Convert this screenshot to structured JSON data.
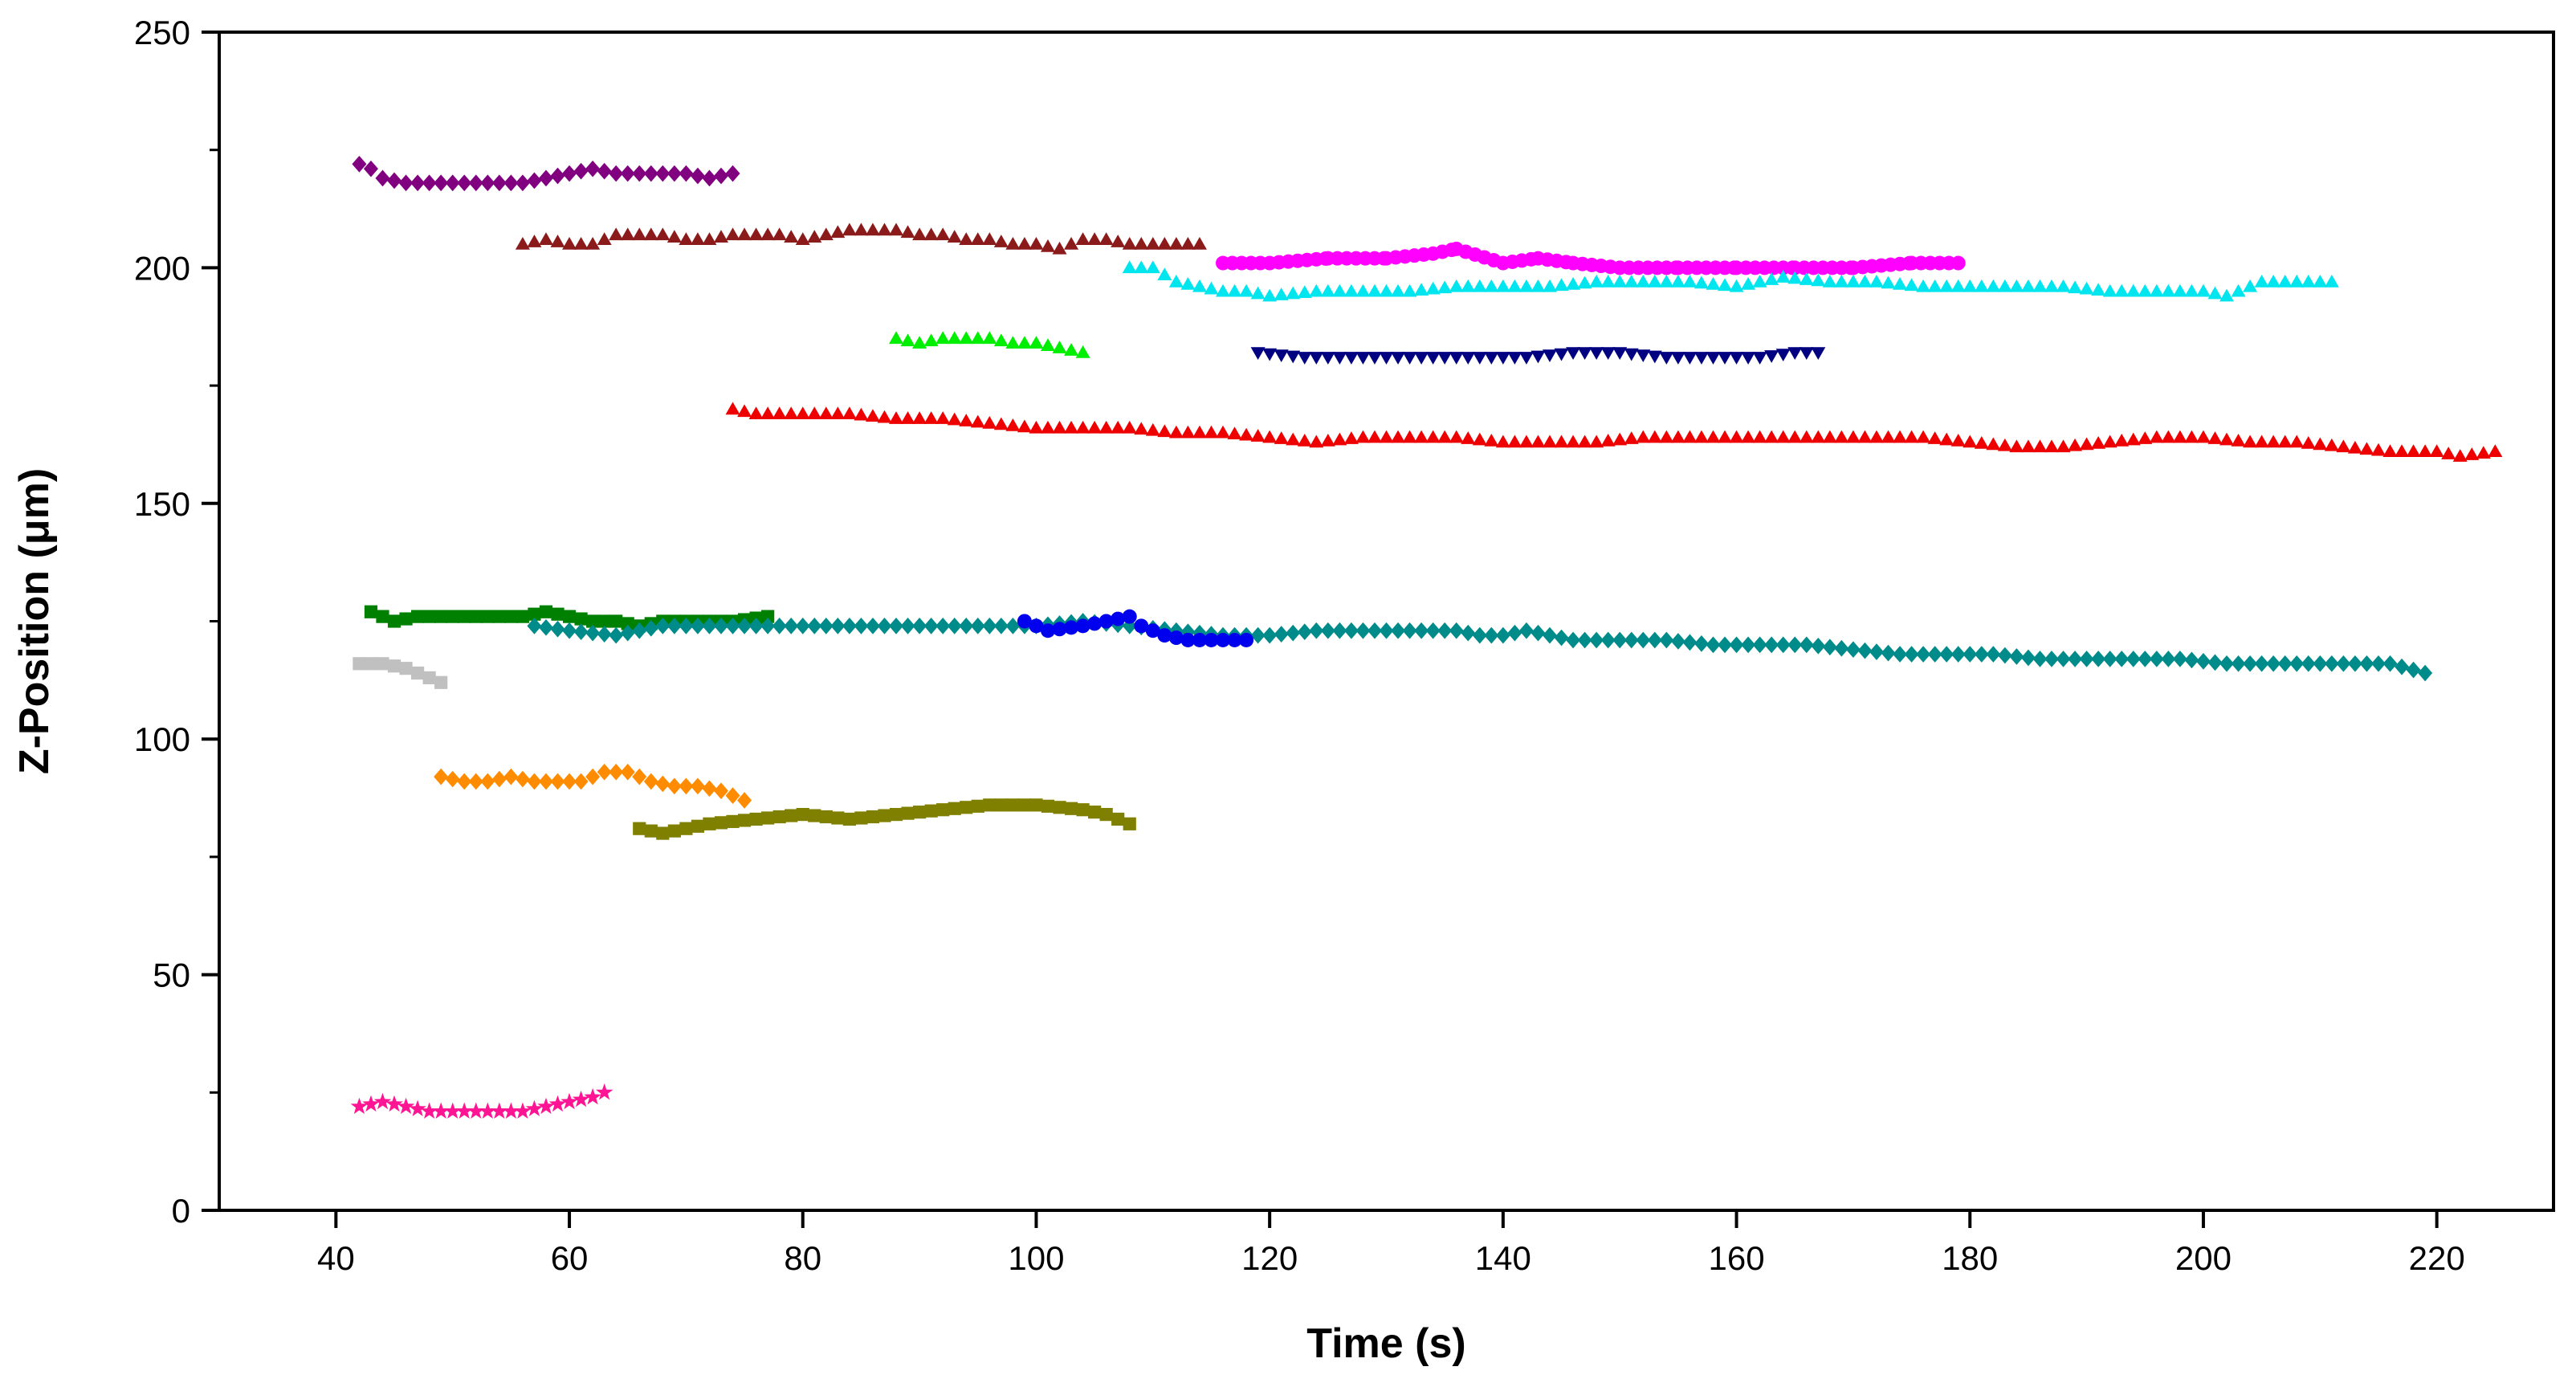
{
  "chart_data": {
    "type": "scatter",
    "title": "",
    "xlabel": "Time (s)",
    "ylabel": "Z-Position (μm)",
    "xlim": [
      30,
      230
    ],
    "ylim": [
      0,
      250
    ],
    "xticks": [
      40,
      60,
      80,
      100,
      120,
      140,
      160,
      180,
      200,
      220
    ],
    "yticks": [
      0,
      50,
      100,
      150,
      200,
      250
    ],
    "grid": false,
    "legend": "none",
    "series": [
      {
        "name": "purple",
        "color": "#800080",
        "marker": "diamond",
        "step": 1,
        "keys": [
          [
            42,
            222
          ],
          [
            43,
            221
          ],
          [
            44,
            219
          ],
          [
            46,
            218
          ],
          [
            48,
            218
          ],
          [
            50,
            218
          ],
          [
            52,
            218
          ],
          [
            54,
            218
          ],
          [
            56,
            218
          ],
          [
            58,
            219
          ],
          [
            60,
            220
          ],
          [
            62,
            221
          ],
          [
            64,
            220
          ],
          [
            66,
            220
          ],
          [
            68,
            220
          ],
          [
            70,
            220
          ],
          [
            72,
            219
          ],
          [
            74,
            220
          ]
        ]
      },
      {
        "name": "dark-red",
        "color": "#8B1A1A",
        "marker": "triangle-up",
        "step": 1,
        "keys": [
          [
            56,
            205
          ],
          [
            58,
            206
          ],
          [
            60,
            205
          ],
          [
            62,
            205
          ],
          [
            64,
            207
          ],
          [
            66,
            207
          ],
          [
            68,
            207
          ],
          [
            70,
            206
          ],
          [
            72,
            206
          ],
          [
            74,
            207
          ],
          [
            76,
            207
          ],
          [
            78,
            207
          ],
          [
            80,
            206
          ],
          [
            82,
            207
          ],
          [
            84,
            208
          ],
          [
            86,
            208
          ],
          [
            88,
            208
          ],
          [
            90,
            207
          ],
          [
            92,
            207
          ],
          [
            94,
            206
          ],
          [
            96,
            206
          ],
          [
            98,
            205
          ],
          [
            100,
            205
          ],
          [
            102,
            204
          ],
          [
            104,
            206
          ],
          [
            106,
            206
          ],
          [
            108,
            205
          ],
          [
            110,
            205
          ],
          [
            112,
            205
          ],
          [
            114,
            205
          ]
        ]
      },
      {
        "name": "magenta",
        "color": "#FF00FF",
        "marker": "circle",
        "step": 0.8,
        "keys": [
          [
            116,
            201
          ],
          [
            120,
            201
          ],
          [
            125,
            202
          ],
          [
            130,
            202
          ],
          [
            134,
            203
          ],
          [
            136,
            204
          ],
          [
            140,
            201
          ],
          [
            143,
            202
          ],
          [
            146,
            201
          ],
          [
            150,
            200
          ],
          [
            155,
            200
          ],
          [
            160,
            200
          ],
          [
            165,
            200
          ],
          [
            170,
            200
          ],
          [
            175,
            201
          ],
          [
            179,
            201
          ]
        ]
      },
      {
        "name": "cyan",
        "color": "#00E5EE",
        "marker": "triangle-up",
        "step": 1,
        "keys": [
          [
            108,
            200
          ],
          [
            110,
            200
          ],
          [
            112,
            197
          ],
          [
            114,
            196
          ],
          [
            116,
            195
          ],
          [
            118,
            195
          ],
          [
            120,
            194
          ],
          [
            124,
            195
          ],
          [
            128,
            195
          ],
          [
            132,
            195
          ],
          [
            136,
            196
          ],
          [
            140,
            196
          ],
          [
            144,
            196
          ],
          [
            148,
            197
          ],
          [
            152,
            197
          ],
          [
            156,
            197
          ],
          [
            160,
            196
          ],
          [
            164,
            198
          ],
          [
            168,
            197
          ],
          [
            172,
            197
          ],
          [
            176,
            196
          ],
          [
            180,
            196
          ],
          [
            184,
            196
          ],
          [
            188,
            196
          ],
          [
            192,
            195
          ],
          [
            196,
            195
          ],
          [
            200,
            195
          ],
          [
            202,
            194
          ],
          [
            205,
            197
          ],
          [
            208,
            197
          ],
          [
            211,
            197
          ]
        ]
      },
      {
        "name": "green",
        "color": "#00EE00",
        "marker": "triangle-up",
        "step": 1,
        "keys": [
          [
            88,
            185
          ],
          [
            90,
            184
          ],
          [
            92,
            185
          ],
          [
            94,
            185
          ],
          [
            96,
            185
          ],
          [
            98,
            184
          ],
          [
            100,
            184
          ],
          [
            102,
            183
          ],
          [
            104,
            182
          ]
        ]
      },
      {
        "name": "navy",
        "color": "#000080",
        "marker": "triangle-down",
        "step": 1,
        "keys": [
          [
            119,
            182
          ],
          [
            123,
            181
          ],
          [
            126,
            181
          ],
          [
            130,
            181
          ],
          [
            134,
            181
          ],
          [
            138,
            181
          ],
          [
            142,
            181
          ],
          [
            146,
            182
          ],
          [
            150,
            182
          ],
          [
            154,
            181
          ],
          [
            158,
            181
          ],
          [
            162,
            181
          ],
          [
            165,
            182
          ],
          [
            167,
            182
          ]
        ]
      },
      {
        "name": "red",
        "color": "#EE0000",
        "marker": "triangle-up",
        "step": 1,
        "keys": [
          [
            74,
            170
          ],
          [
            76,
            169
          ],
          [
            80,
            169
          ],
          [
            84,
            169
          ],
          [
            88,
            168
          ],
          [
            92,
            168
          ],
          [
            96,
            167
          ],
          [
            100,
            166
          ],
          [
            104,
            166
          ],
          [
            108,
            166
          ],
          [
            112,
            165
          ],
          [
            116,
            165
          ],
          [
            120,
            164
          ],
          [
            124,
            163
          ],
          [
            128,
            164
          ],
          [
            132,
            164
          ],
          [
            136,
            164
          ],
          [
            140,
            163
          ],
          [
            144,
            163
          ],
          [
            148,
            163
          ],
          [
            152,
            164
          ],
          [
            156,
            164
          ],
          [
            160,
            164
          ],
          [
            164,
            164
          ],
          [
            168,
            164
          ],
          [
            172,
            164
          ],
          [
            176,
            164
          ],
          [
            180,
            163
          ],
          [
            184,
            162
          ],
          [
            188,
            162
          ],
          [
            192,
            163
          ],
          [
            196,
            164
          ],
          [
            200,
            164
          ],
          [
            204,
            163
          ],
          [
            208,
            163
          ],
          [
            212,
            162
          ],
          [
            216,
            161
          ],
          [
            220,
            161
          ],
          [
            222,
            160
          ],
          [
            225,
            161
          ]
        ]
      },
      {
        "name": "dark-green",
        "color": "#008000",
        "marker": "square",
        "step": 1,
        "keys": [
          [
            43,
            127
          ],
          [
            45,
            125
          ],
          [
            47,
            126
          ],
          [
            50,
            126
          ],
          [
            53,
            126
          ],
          [
            56,
            126
          ],
          [
            58,
            127
          ],
          [
            60,
            126
          ],
          [
            62,
            125
          ],
          [
            64,
            125
          ],
          [
            66,
            124
          ],
          [
            68,
            125
          ],
          [
            70,
            125
          ],
          [
            72,
            125
          ],
          [
            74,
            125
          ],
          [
            77,
            126
          ]
        ]
      },
      {
        "name": "teal",
        "color": "#008B8B",
        "marker": "diamond",
        "step": 1,
        "keys": [
          [
            57,
            124
          ],
          [
            60,
            123
          ],
          [
            64,
            122
          ],
          [
            68,
            124
          ],
          [
            72,
            124
          ],
          [
            76,
            124
          ],
          [
            80,
            124
          ],
          [
            84,
            124
          ],
          [
            88,
            124
          ],
          [
            92,
            124
          ],
          [
            96,
            124
          ],
          [
            100,
            124
          ],
          [
            104,
            125
          ],
          [
            108,
            124
          ],
          [
            112,
            123
          ],
          [
            116,
            122
          ],
          [
            120,
            122
          ],
          [
            124,
            123
          ],
          [
            128,
            123
          ],
          [
            132,
            123
          ],
          [
            136,
            123
          ],
          [
            138,
            122
          ],
          [
            140,
            122
          ],
          [
            142,
            123
          ],
          [
            146,
            121
          ],
          [
            150,
            121
          ],
          [
            154,
            121
          ],
          [
            158,
            120
          ],
          [
            162,
            120
          ],
          [
            166,
            120
          ],
          [
            170,
            119
          ],
          [
            174,
            118
          ],
          [
            178,
            118
          ],
          [
            182,
            118
          ],
          [
            186,
            117
          ],
          [
            190,
            117
          ],
          [
            194,
            117
          ],
          [
            198,
            117
          ],
          [
            202,
            116
          ],
          [
            206,
            116
          ],
          [
            210,
            116
          ],
          [
            214,
            116
          ],
          [
            216,
            116
          ],
          [
            219,
            114
          ]
        ]
      },
      {
        "name": "blue",
        "color": "#0000EE",
        "marker": "circle",
        "step": 1,
        "keys": [
          [
            99,
            125
          ],
          [
            101,
            123
          ],
          [
            104,
            124
          ],
          [
            106,
            125
          ],
          [
            108,
            126
          ],
          [
            109,
            124
          ],
          [
            111,
            122
          ],
          [
            113,
            121
          ],
          [
            115,
            121
          ],
          [
            118,
            121
          ]
        ]
      },
      {
        "name": "gray",
        "color": "#C0C0C0",
        "marker": "square",
        "step": 1,
        "keys": [
          [
            42,
            116
          ],
          [
            44,
            116
          ],
          [
            46,
            115
          ],
          [
            48,
            113
          ],
          [
            49,
            112
          ]
        ]
      },
      {
        "name": "orange",
        "color": "#FF8C00",
        "marker": "diamond",
        "step": 1,
        "keys": [
          [
            49,
            92
          ],
          [
            51,
            91
          ],
          [
            53,
            91
          ],
          [
            55,
            92
          ],
          [
            57,
            91
          ],
          [
            59,
            91
          ],
          [
            61,
            91
          ],
          [
            63,
            93
          ],
          [
            65,
            93
          ],
          [
            67,
            91
          ],
          [
            69,
            90
          ],
          [
            71,
            90
          ],
          [
            73,
            89
          ],
          [
            75,
            87
          ]
        ]
      },
      {
        "name": "olive",
        "color": "#808000",
        "marker": "square",
        "step": 1,
        "keys": [
          [
            66,
            81
          ],
          [
            68,
            80
          ],
          [
            70,
            81
          ],
          [
            72,
            82
          ],
          [
            76,
            83
          ],
          [
            80,
            84
          ],
          [
            84,
            83
          ],
          [
            88,
            84
          ],
          [
            92,
            85
          ],
          [
            96,
            86
          ],
          [
            100,
            86
          ],
          [
            104,
            85
          ],
          [
            106,
            84
          ],
          [
            108,
            82
          ]
        ]
      },
      {
        "name": "pink",
        "color": "#FF1493",
        "marker": "star",
        "step": 1,
        "keys": [
          [
            42,
            22
          ],
          [
            44,
            23
          ],
          [
            46,
            22
          ],
          [
            48,
            21
          ],
          [
            50,
            21
          ],
          [
            52,
            21
          ],
          [
            54,
            21
          ],
          [
            56,
            21
          ],
          [
            58,
            22
          ],
          [
            60,
            23
          ],
          [
            62,
            24
          ],
          [
            63,
            25
          ]
        ]
      }
    ]
  }
}
